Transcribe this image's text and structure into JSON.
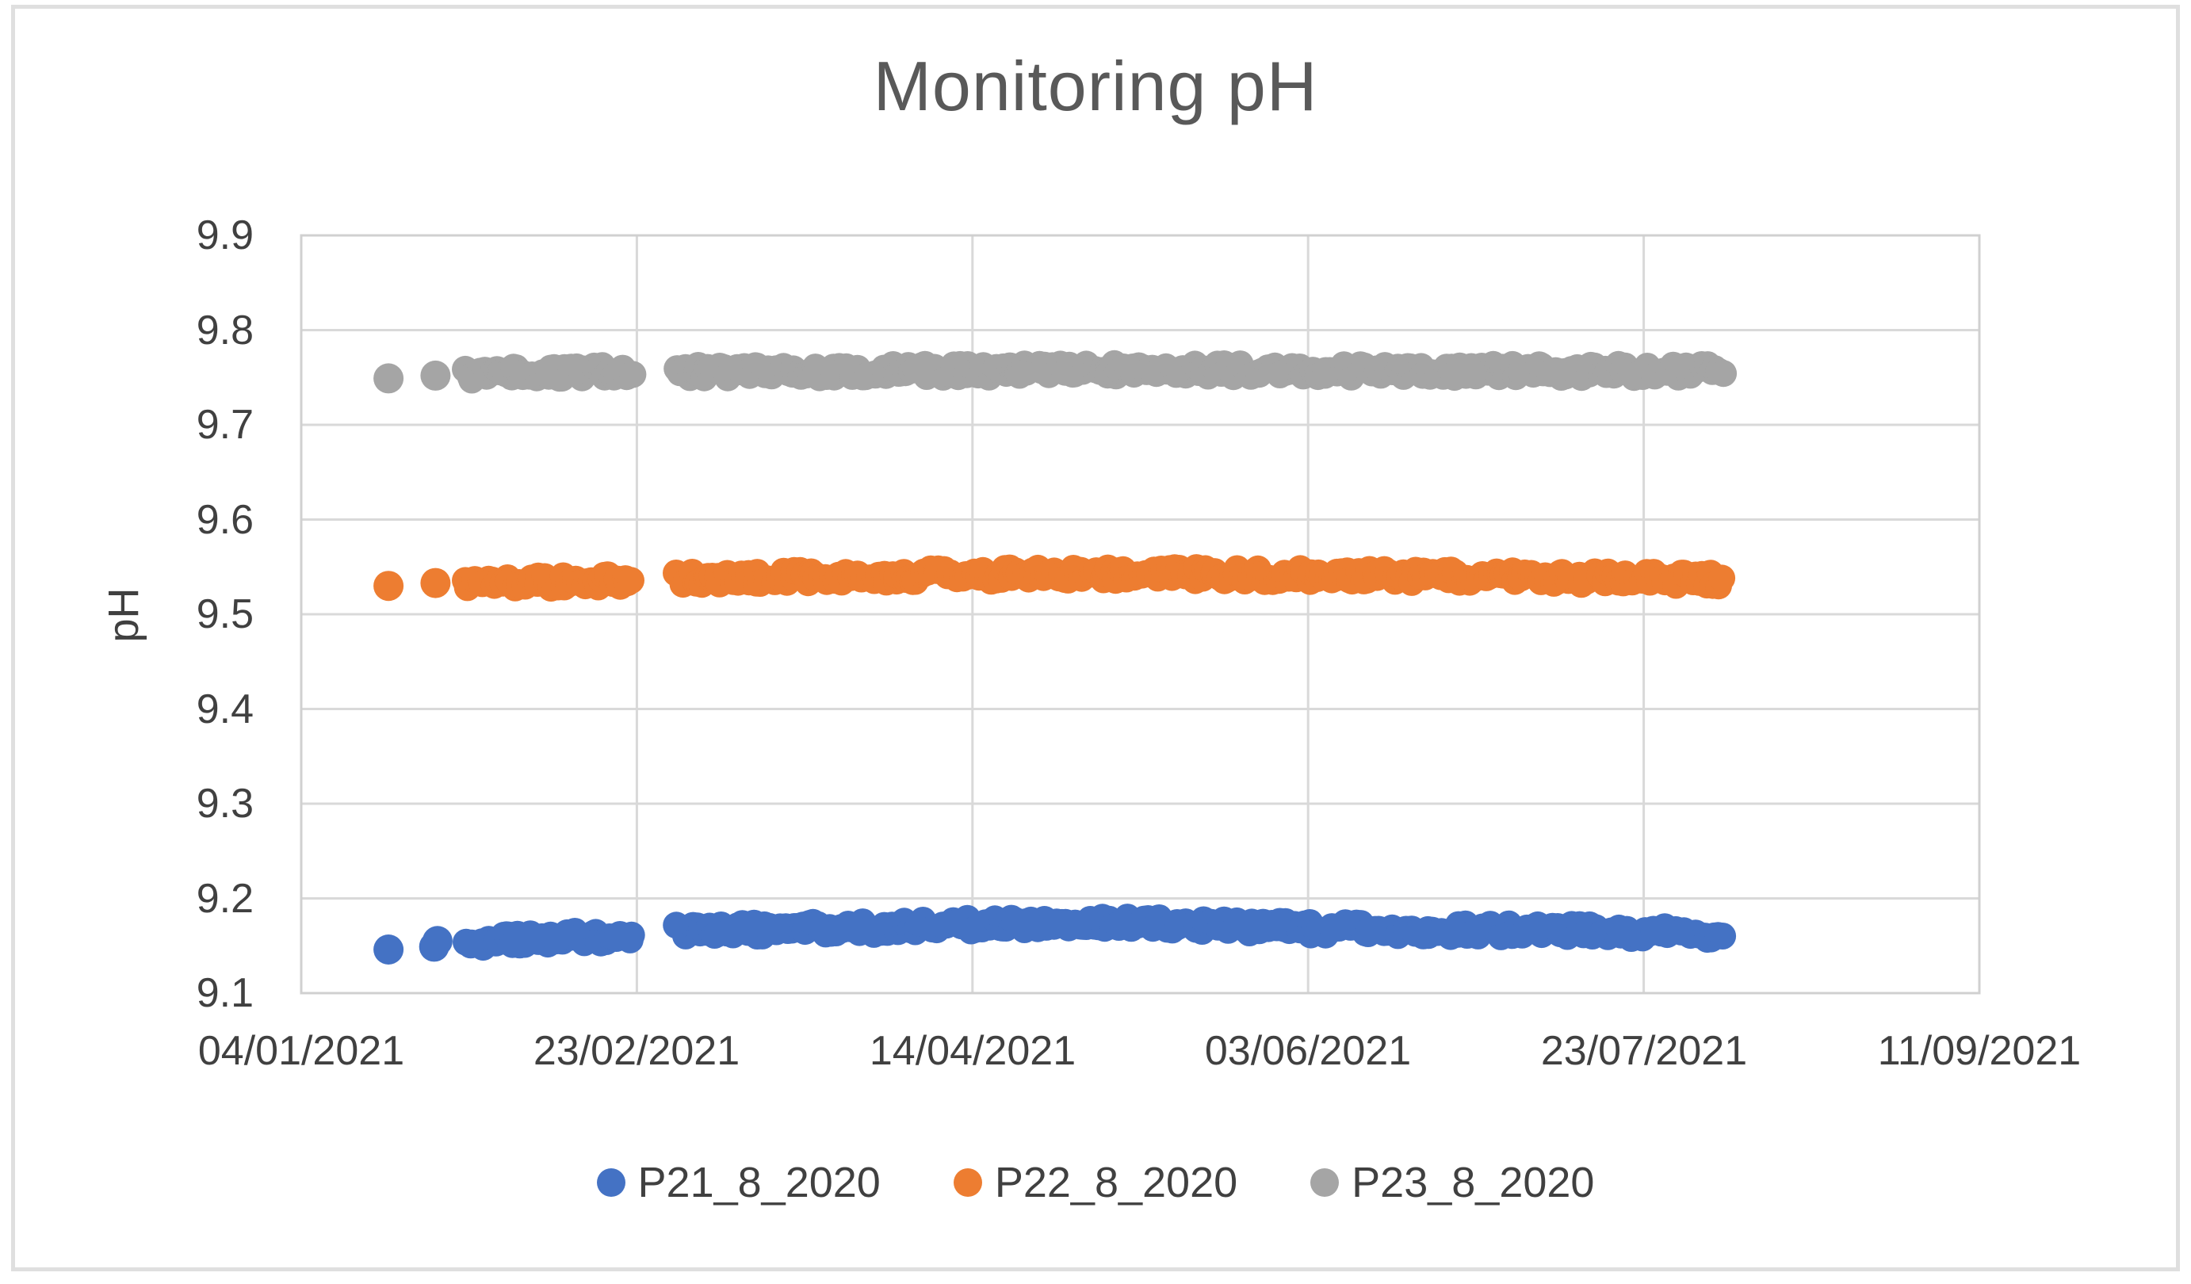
{
  "figure": {
    "background_color": "#ffffff",
    "frame_border_color": "#dfdfdf"
  },
  "chart_data": {
    "type": "scatter",
    "title": "Monitoring pH",
    "xlabel": "",
    "ylabel": "pH",
    "grid": true,
    "gridline_color": "#d9d9d9",
    "plot_border_color": "#d0d0d0",
    "legend_position": "bottom",
    "ylim": [
      9.1,
      9.9
    ],
    "y_ticks": [
      9.9,
      9.8,
      9.7,
      9.6,
      9.5,
      9.4,
      9.3,
      9.2,
      9.1
    ],
    "y_tick_labels": [
      "9.9",
      "9.8",
      "9.7",
      "9.6",
      "9.5",
      "9.4",
      "9.3",
      "9.2",
      "9.1"
    ],
    "x_tick_labels": [
      "04/01/2021",
      "23/02/2021",
      "14/04/2021",
      "03/06/2021",
      "23/07/2021",
      "11/09/2021"
    ],
    "xlim_days": [
      0,
      250
    ],
    "tick_interval_days": 50,
    "x_day_zero_date": "04/01/2021",
    "series": [
      {
        "name": "P21_8_2020",
        "color": "#4472C4",
        "approx_ph_level": 9.16,
        "isolated_points": [
          {
            "day": 13,
            "date": "17/01/2021",
            "ph": 9.146
          },
          {
            "day": 19.8,
            "date": "24/01/2021",
            "ph": 9.149
          },
          {
            "day": 20.3,
            "date": "24/01/2021",
            "ph": 9.155
          }
        ],
        "bands": [
          {
            "start_day": 24.5,
            "end_day": 49.5,
            "start_date": "28/01/2021",
            "end_date": "22/02/2021",
            "ph_profile": [
              [
                24.5,
                9.153
              ],
              [
                40,
                9.158
              ],
              [
                49.5,
                9.162
              ]
            ]
          },
          {
            "start_day": 56,
            "end_day": 212,
            "start_date": "01/03/2021",
            "end_date": "04/08/2021",
            "ph_profile": [
              [
                56,
                9.166
              ],
              [
                85,
                9.169
              ],
              [
                105,
                9.173
              ],
              [
                116,
                9.176
              ],
              [
                135,
                9.171
              ],
              [
                160,
                9.167
              ],
              [
                185,
                9.166
              ],
              [
                212,
                9.162
              ]
            ]
          }
        ]
      },
      {
        "name": "P22_8_2020",
        "color": "#ED7D31",
        "approx_ph_level": 9.54,
        "isolated_points": [
          {
            "day": 13,
            "date": "17/01/2021",
            "ph": 9.53
          },
          {
            "day": 20,
            "date": "24/01/2021",
            "ph": 9.533
          }
        ],
        "bands": [
          {
            "start_day": 24.5,
            "end_day": 49.5,
            "start_date": "28/01/2021",
            "end_date": "22/02/2021",
            "ph_profile": [
              [
                24.5,
                9.531
              ],
              [
                40,
                9.535
              ],
              [
                49.5,
                9.537
              ]
            ]
          },
          {
            "start_day": 56,
            "end_day": 212,
            "start_date": "01/03/2021",
            "end_date": "04/08/2021",
            "ph_profile": [
              [
                56,
                9.538
              ],
              [
                90,
                9.541
              ],
              [
                120,
                9.543
              ],
              [
                155,
                9.541
              ],
              [
                185,
                9.539
              ],
              [
                212,
                9.537
              ]
            ]
          }
        ]
      },
      {
        "name": "P23_8_2020",
        "color": "#A5A5A5",
        "approx_ph_level": 9.757,
        "isolated_points": [
          {
            "day": 13,
            "date": "17/01/2021",
            "ph": 9.749
          },
          {
            "day": 20,
            "date": "24/01/2021",
            "ph": 9.752
          }
        ],
        "bands": [
          {
            "start_day": 24.5,
            "end_day": 49.5,
            "start_date": "28/01/2021",
            "end_date": "22/02/2021",
            "ph_profile": [
              [
                24.5,
                9.753
              ],
              [
                40,
                9.756
              ],
              [
                49.5,
                9.757
              ]
            ]
          },
          {
            "start_day": 56,
            "end_day": 212,
            "start_date": "01/03/2021",
            "end_date": "04/08/2021",
            "ph_profile": [
              [
                56,
                9.756
              ],
              [
                90,
                9.757
              ],
              [
                120,
                9.758
              ],
              [
                160,
                9.757
              ],
              [
                190,
                9.757
              ],
              [
                212,
                9.757
              ]
            ]
          }
        ]
      }
    ]
  }
}
